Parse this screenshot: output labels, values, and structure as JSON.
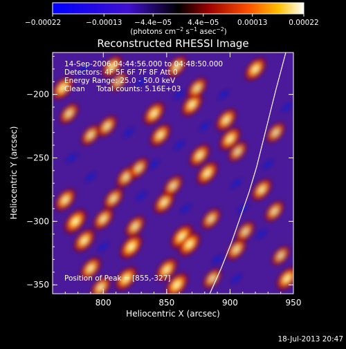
{
  "chart_data": {
    "type": "heatmap",
    "title": "Reconstructed RHESSI Image",
    "xlabel": "Heliocentric X (arcsec)",
    "ylabel": "Heliocentric Y (arcsec)",
    "xlim": [
      760,
      950
    ],
    "ylim": [
      -357,
      -167
    ],
    "x_ticks": [
      800,
      850,
      900,
      950
    ],
    "x_tick_labels": [
      "800",
      "850",
      "900",
      "950"
    ],
    "y_ticks": [
      -200,
      -250,
      -300,
      -350
    ],
    "y_tick_labels": [
      "−200",
      "−250",
      "−300",
      "−350"
    ],
    "colorbar": {
      "range": [
        -0.00022,
        0.00022
      ],
      "ticks": [
        -0.00022,
        -0.00013,
        -4.4e-05,
        4.4e-05,
        0.00013,
        0.00022
      ],
      "tick_labels": [
        "−0.00022",
        "−0.00013",
        "−4.4e−05",
        "4.4e−05",
        "0.00013",
        "0.00022"
      ],
      "label_main": "(photons cm",
      "label_sup1": "−2",
      "label_mid1": " s",
      "label_sup2": "−1",
      "label_mid2": " asec",
      "label_sup3": "−2",
      "label_end": ")"
    },
    "annotations": {
      "time_range": "14-Sep-2006 04:44:56.000 to 04:48:50.000",
      "detectors": "Detectors: 4F 5F 6F 7F 8F Att 0",
      "energy": "Energy Range: 25.0 - 50.0 keV",
      "clean": "Clean     Total counts: 5.16E+03",
      "peak": "Position of Peak = [855,-327]"
    },
    "footer_timestamp": "18-Jul-2013 20:47",
    "limb_curve": {
      "points": [
        [
          884,
          -357
        ],
        [
          893,
          -337
        ],
        [
          901,
          -317
        ],
        [
          908,
          -297
        ],
        [
          915,
          -277
        ],
        [
          921,
          -257
        ],
        [
          926,
          -237
        ],
        [
          931,
          -217
        ],
        [
          936,
          -197
        ],
        [
          940,
          -182
        ],
        [
          944,
          -167
        ]
      ]
    },
    "blobs": [
      {
        "x": 768,
        "y": -195,
        "v": 0.9
      },
      {
        "x": 773,
        "y": -215,
        "v": 0.7
      },
      {
        "x": 770,
        "y": -283,
        "v": 0.85
      },
      {
        "x": 778,
        "y": -300,
        "v": 1.0
      },
      {
        "x": 785,
        "y": -315,
        "v": 0.9
      },
      {
        "x": 790,
        "y": -232,
        "v": 0.7
      },
      {
        "x": 803,
        "y": -225,
        "v": 0.75
      },
      {
        "x": 807,
        "y": -178,
        "v": 0.8
      },
      {
        "x": 812,
        "y": -190,
        "v": 0.55
      },
      {
        "x": 800,
        "y": -298,
        "v": 0.8
      },
      {
        "x": 808,
        "y": -282,
        "v": 0.75
      },
      {
        "x": 790,
        "y": -337,
        "v": 0.85
      },
      {
        "x": 798,
        "y": -352,
        "v": 0.8
      },
      {
        "x": 818,
        "y": -265,
        "v": 0.75
      },
      {
        "x": 828,
        "y": -258,
        "v": 0.7
      },
      {
        "x": 822,
        "y": -320,
        "v": 1.0
      },
      {
        "x": 818,
        "y": -345,
        "v": 0.95
      },
      {
        "x": 825,
        "y": -304,
        "v": 0.75
      },
      {
        "x": 840,
        "y": -215,
        "v": 0.9
      },
      {
        "x": 845,
        "y": -232,
        "v": 0.85
      },
      {
        "x": 848,
        "y": -285,
        "v": 0.85
      },
      {
        "x": 855,
        "y": -272,
        "v": 0.7
      },
      {
        "x": 850,
        "y": -338,
        "v": 0.9
      },
      {
        "x": 858,
        "y": -350,
        "v": 1.0
      },
      {
        "x": 862,
        "y": -312,
        "v": 1.0
      },
      {
        "x": 868,
        "y": -318,
        "v": 0.95
      },
      {
        "x": 858,
        "y": -178,
        "v": 0.75
      },
      {
        "x": 870,
        "y": -208,
        "v": 0.9
      },
      {
        "x": 874,
        "y": -195,
        "v": 0.75
      },
      {
        "x": 876,
        "y": -248,
        "v": 0.85
      },
      {
        "x": 882,
        "y": -262,
        "v": 0.9
      },
      {
        "x": 885,
        "y": -298,
        "v": 0.7
      },
      {
        "x": 886,
        "y": -345,
        "v": 0.65
      },
      {
        "x": 897,
        "y": -220,
        "v": 0.85
      },
      {
        "x": 900,
        "y": -235,
        "v": 0.9
      },
      {
        "x": 906,
        "y": -245,
        "v": 0.65
      },
      {
        "x": 905,
        "y": -322,
        "v": 0.75
      },
      {
        "x": 912,
        "y": -308,
        "v": 0.65
      },
      {
        "x": 920,
        "y": -180,
        "v": 0.9
      },
      {
        "x": 925,
        "y": -275,
        "v": 0.8
      },
      {
        "x": 935,
        "y": -292,
        "v": 0.7
      },
      {
        "x": 936,
        "y": -230,
        "v": 0.65
      },
      {
        "x": 945,
        "y": -345,
        "v": 0.9
      },
      {
        "x": 940,
        "y": -327,
        "v": 0.6
      }
    ]
  }
}
